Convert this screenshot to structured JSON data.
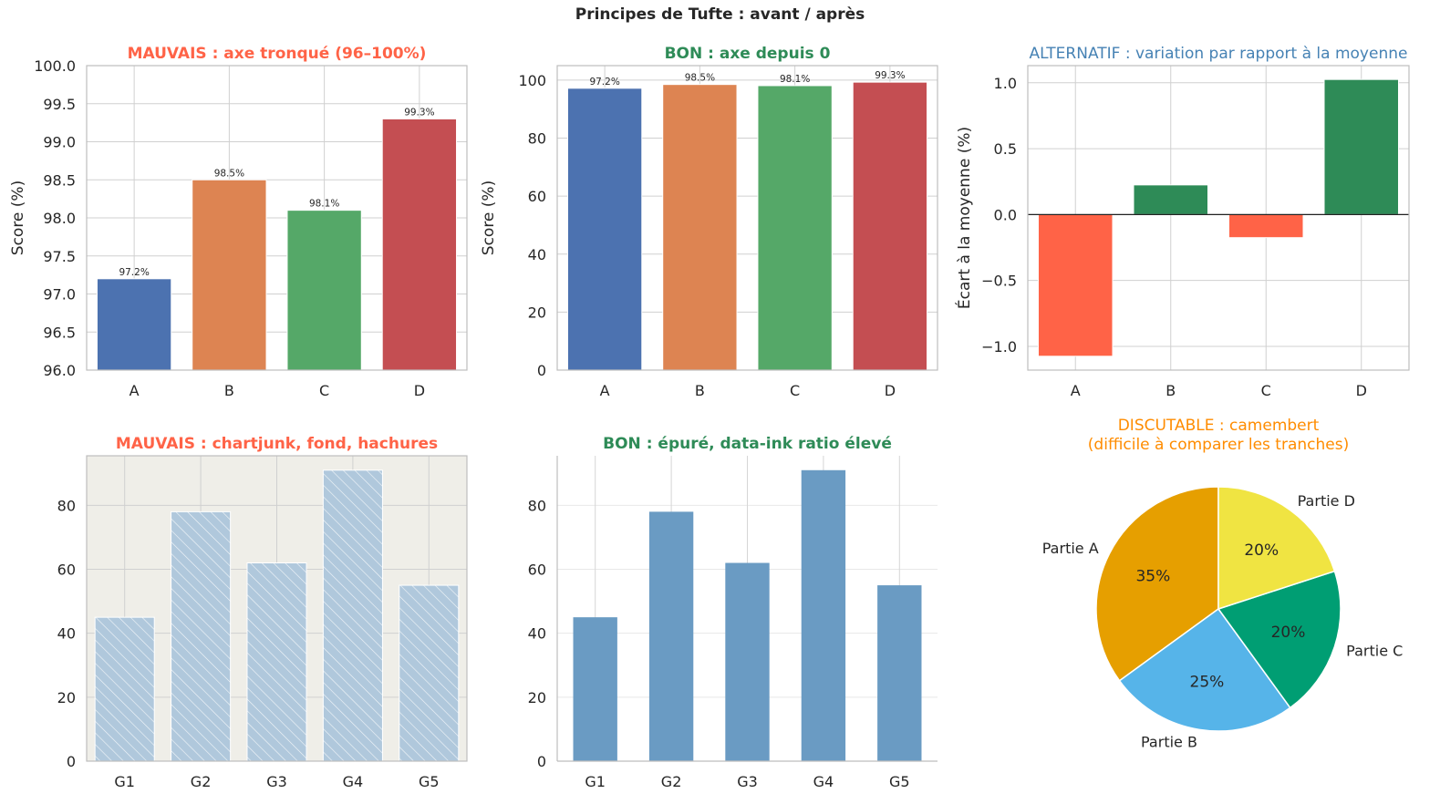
{
  "suptitle": "Principes de Tufte : avant / après",
  "colors": {
    "blue": "#4C72B0",
    "orange": "#DD8452",
    "green": "#55A868",
    "red": "#C44E52",
    "bad": "#FF6347",
    "good": "#2E8B57",
    "alt": "#4682B4",
    "debatable": "#FF8C00",
    "steel": "#6A9BC3",
    "hatch_fill": "#B0C8DC",
    "junk_bg": "#EFEEE8",
    "grid": "#D0D0D0",
    "axis": "#BDBDBD",
    "text": "#262626"
  },
  "chart_data": [
    {
      "id": "truncated",
      "type": "bar",
      "title": "MAUVAIS : axe tronqué (96–100%)",
      "title_color": "#FF6347",
      "title_bold": true,
      "xlabel": "",
      "ylabel": "Score (%)",
      "categories": [
        "A",
        "B",
        "C",
        "D"
      ],
      "values": [
        97.2,
        98.5,
        98.1,
        99.3
      ],
      "data_labels": [
        "97.2%",
        "98.5%",
        "98.1%",
        "99.3%"
      ],
      "bar_colors": [
        "#4C72B0",
        "#DD8452",
        "#55A868",
        "#C44E52"
      ],
      "ylim": [
        96.0,
        100.0
      ],
      "yticks": [
        96.0,
        96.5,
        97.0,
        97.5,
        98.0,
        98.5,
        99.0,
        99.5,
        100.0
      ],
      "ytick_labels": [
        "96.0",
        "96.5",
        "97.0",
        "97.5",
        "98.0",
        "98.5",
        "99.0",
        "99.5",
        "100.0"
      ],
      "grid": true
    },
    {
      "id": "from_zero",
      "type": "bar",
      "title": "BON : axe depuis 0",
      "title_color": "#2E8B57",
      "title_bold": true,
      "xlabel": "",
      "ylabel": "Score (%)",
      "categories": [
        "A",
        "B",
        "C",
        "D"
      ],
      "values": [
        97.2,
        98.5,
        98.1,
        99.3
      ],
      "data_labels": [
        "97.2%",
        "98.5%",
        "98.1%",
        "99.3%"
      ],
      "bar_colors": [
        "#4C72B0",
        "#DD8452",
        "#55A868",
        "#C44E52"
      ],
      "ylim": [
        0,
        105
      ],
      "yticks": [
        0,
        20,
        40,
        60,
        80,
        100
      ],
      "ytick_labels": [
        "0",
        "20",
        "40",
        "60",
        "80",
        "100"
      ],
      "grid": true
    },
    {
      "id": "deviation",
      "type": "bar",
      "title": "ALTERNATIF : variation par rapport à la moyenne",
      "title_color": "#4682B4",
      "title_bold": false,
      "xlabel": "",
      "ylabel": "Écart à la moyenne (%)",
      "categories": [
        "A",
        "B",
        "C",
        "D"
      ],
      "values": [
        -1.075,
        0.225,
        -0.175,
        1.025
      ],
      "bar_colors": [
        "#FF6347",
        "#2E8B57",
        "#FF6347",
        "#2E8B57"
      ],
      "ylim": [
        -1.18,
        1.13
      ],
      "yticks": [
        -1.0,
        -0.5,
        0.0,
        0.5,
        1.0
      ],
      "ytick_labels": [
        "−1.0",
        "−0.5",
        "0.0",
        "0.5",
        "1.0"
      ],
      "zero_line": true,
      "grid": true
    },
    {
      "id": "chartjunk",
      "type": "bar",
      "title": "MAUVAIS : chartjunk, fond, hachures",
      "title_color": "#FF6347",
      "title_bold": true,
      "xlabel": "",
      "ylabel": "",
      "categories": [
        "G1",
        "G2",
        "G3",
        "G4",
        "G5"
      ],
      "values": [
        45,
        78,
        62,
        91,
        55
      ],
      "ylim": [
        0,
        95.5
      ],
      "yticks": [
        0,
        20,
        40,
        60,
        80
      ],
      "ytick_labels": [
        "0",
        "20",
        "40",
        "60",
        "80"
      ],
      "style": "junk",
      "grid": true
    },
    {
      "id": "clean",
      "type": "bar",
      "title": "BON : épuré, data-ink ratio élevé",
      "title_color": "#2E8B57",
      "title_bold": true,
      "xlabel": "",
      "ylabel": "",
      "categories": [
        "G1",
        "G2",
        "G3",
        "G4",
        "G5"
      ],
      "values": [
        45,
        78,
        62,
        91,
        55
      ],
      "ylim": [
        0,
        95.5
      ],
      "yticks": [
        0,
        20,
        40,
        60,
        80
      ],
      "ytick_labels": [
        "0",
        "20",
        "40",
        "60",
        "80"
      ],
      "style": "clean",
      "grid": true
    },
    {
      "id": "pie",
      "type": "pie",
      "title": "DISCUTABLE : camembert\n(difficile à comparer les tranches)",
      "title_color": "#FF8C00",
      "title_bold": false,
      "labels": [
        "Partie A",
        "Partie B",
        "Partie C",
        "Partie D"
      ],
      "values": [
        35,
        25,
        20,
        20
      ],
      "pct_labels": [
        "35%",
        "25%",
        "20%",
        "20%"
      ],
      "slice_colors": [
        "#E69F00",
        "#56B4E9",
        "#009E73",
        "#F0E442"
      ],
      "start_angle_deg": 90,
      "direction": "counterclockwise"
    }
  ]
}
